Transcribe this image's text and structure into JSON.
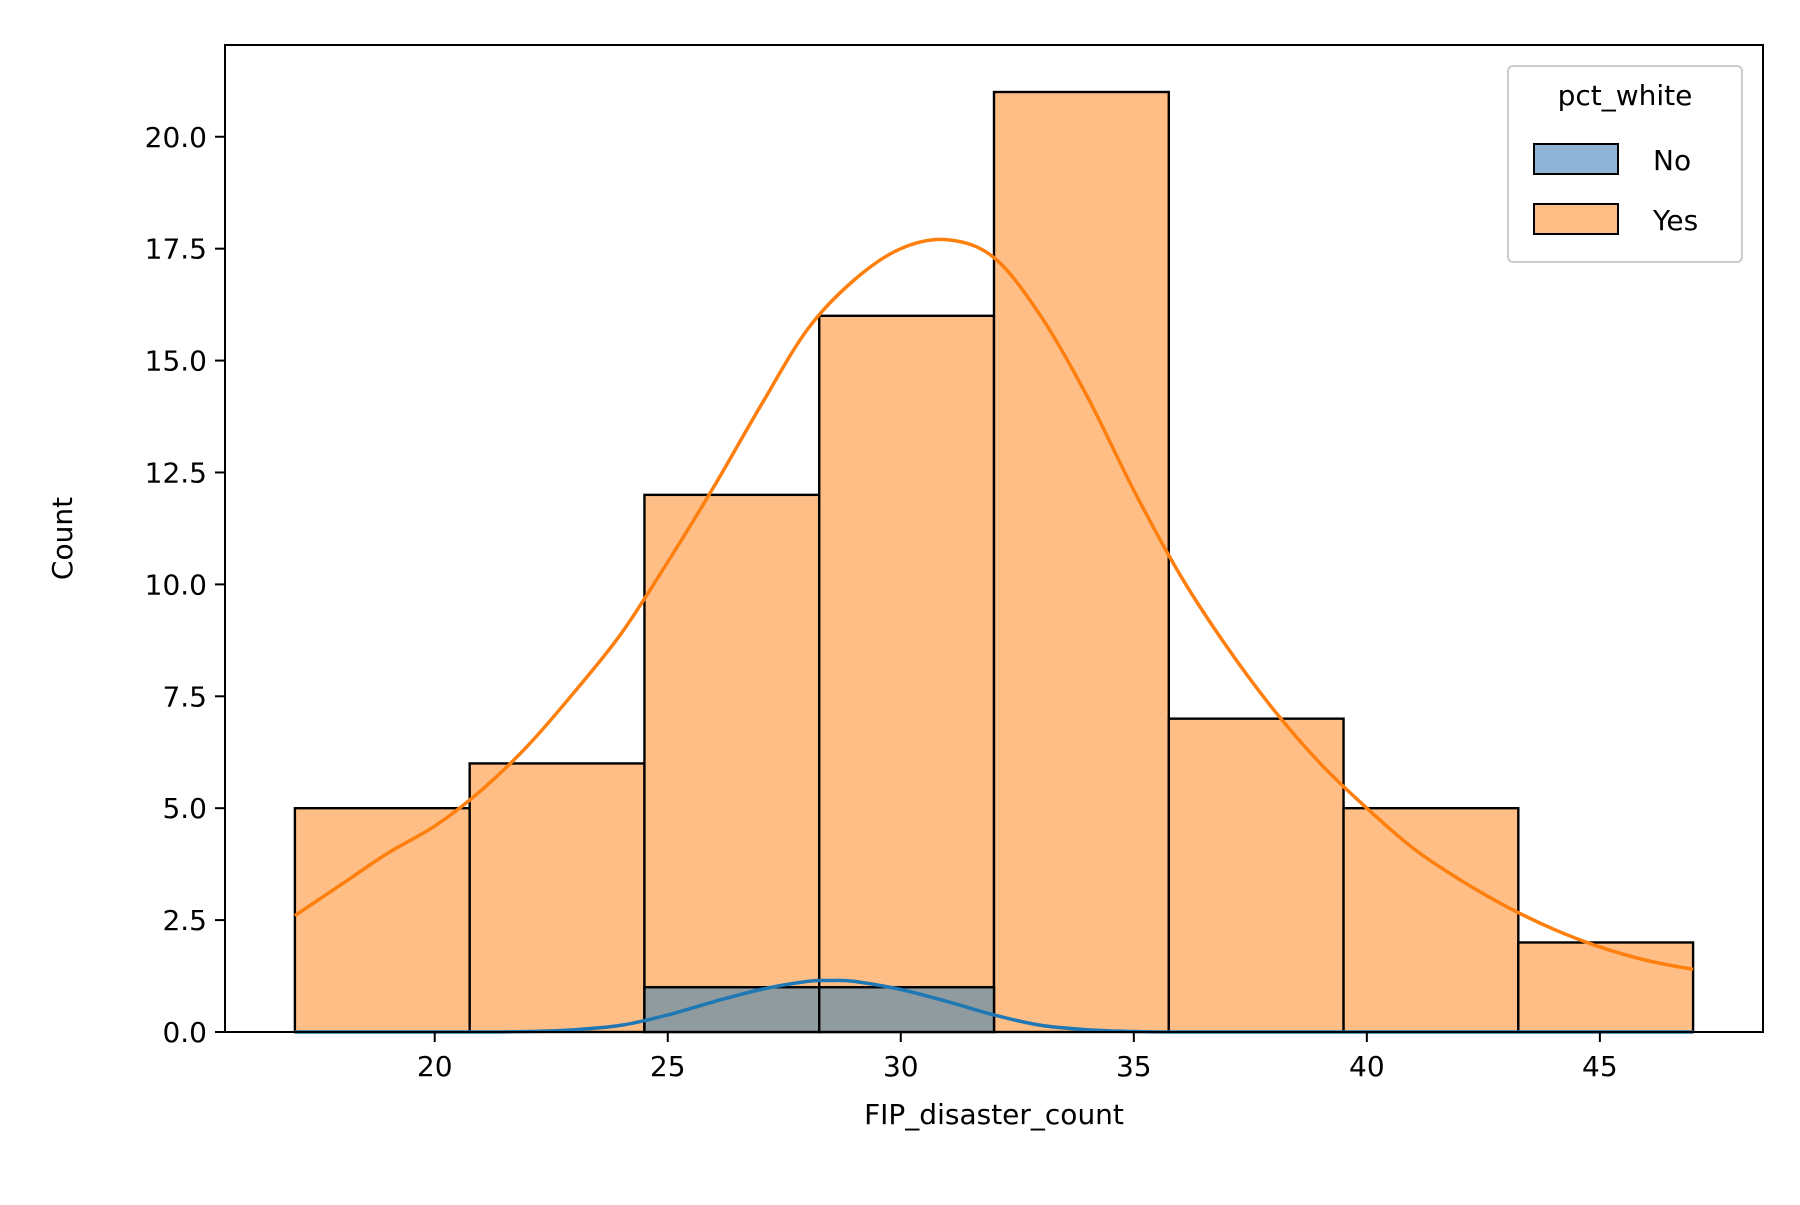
{
  "colors": {
    "no": "#1f77b4",
    "yes": "#ff7f0e",
    "no_fill": "#8fb4d6",
    "yes_fill": "#ffbe86",
    "overlap_fill": "#8f9b9f",
    "edge": "#000000"
  },
  "chart_data": {
    "type": "bar",
    "subtype": "histogram",
    "title": "",
    "xlabel": "FIP_disaster_count",
    "ylabel": "Count",
    "xlim": [
      15.5,
      48.5
    ],
    "ylim": [
      0,
      22.05
    ],
    "xticks": [
      20,
      25,
      30,
      35,
      40,
      45
    ],
    "xtick_labels": [
      "20",
      "25",
      "30",
      "35",
      "40",
      "45"
    ],
    "yticks": [
      0,
      2.5,
      5,
      7.5,
      10,
      12.5,
      15,
      17.5,
      20
    ],
    "ytick_labels": [
      "0.0",
      "2.5",
      "5.0",
      "7.5",
      "10.0",
      "12.5",
      "15.0",
      "17.5",
      "20.0"
    ],
    "grid": false,
    "legend": {
      "title": "pct_white",
      "placement": "top-right",
      "entries": [
        "No",
        "Yes"
      ]
    },
    "bin_edges": [
      17.0,
      20.75,
      24.5,
      28.25,
      32.0,
      35.75,
      39.5,
      43.25,
      47.0
    ],
    "series": [
      {
        "name": "No",
        "color": "#1f77b4",
        "values": [
          0,
          0,
          1,
          1,
          0,
          0,
          0,
          0
        ],
        "kde": {
          "x": [
            17,
            19,
            21,
            22,
            23,
            24,
            25,
            26,
            27,
            28,
            28.5,
            29,
            30,
            31,
            32,
            33,
            34,
            35,
            36,
            38,
            40,
            43,
            47
          ],
          "y": [
            0,
            0,
            0,
            0.01,
            0.05,
            0.15,
            0.38,
            0.68,
            0.95,
            1.13,
            1.15,
            1.13,
            0.95,
            0.68,
            0.38,
            0.15,
            0.05,
            0.01,
            0,
            0,
            0,
            0,
            0
          ]
        }
      },
      {
        "name": "Yes",
        "color": "#ff7f0e",
        "values": [
          5,
          6,
          12,
          16,
          21,
          7,
          5,
          2
        ],
        "kde": {
          "x": [
            17,
            18,
            19,
            20,
            21,
            22,
            23,
            24,
            25,
            26,
            27,
            28,
            29,
            30,
            31,
            32,
            33,
            34,
            35,
            36,
            37,
            38,
            39,
            40,
            41,
            42,
            43,
            44,
            45,
            46,
            47
          ],
          "y": [
            2.6,
            3.3,
            4.0,
            4.6,
            5.4,
            6.4,
            7.6,
            8.9,
            10.5,
            12.2,
            14.0,
            15.7,
            16.8,
            17.5,
            17.7,
            17.3,
            16.0,
            14.2,
            12.1,
            10.2,
            8.6,
            7.2,
            6.0,
            5.0,
            4.1,
            3.4,
            2.8,
            2.3,
            1.9,
            1.6,
            1.4
          ]
        }
      }
    ]
  }
}
